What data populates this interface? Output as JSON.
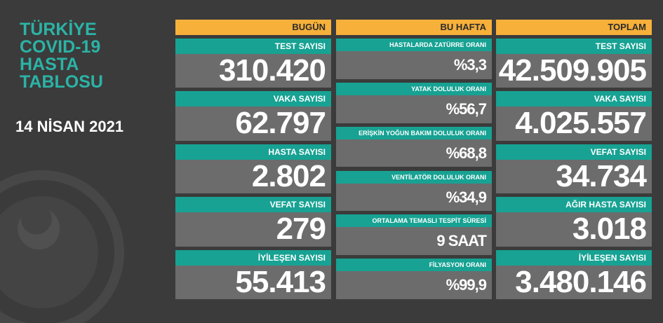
{
  "title_lines": [
    "TÜRKİYE",
    "COVID-19",
    "HASTA",
    "TABLOSU"
  ],
  "date": "14 NİSAN 2021",
  "columns": [
    {
      "header": "BUGÜN",
      "items": [
        {
          "label": "TEST SAYISI",
          "value": "310.420"
        },
        {
          "label": "VAKA SAYISI",
          "value": "62.797"
        },
        {
          "label": "HASTA SAYISI",
          "value": "2.802"
        },
        {
          "label": "VEFAT SAYISI",
          "value": "279"
        },
        {
          "label": "İYİLEŞEN SAYISI",
          "value": "55.413"
        }
      ]
    },
    {
      "header": "BU HAFTA",
      "items": [
        {
          "label": "HASTALARDA ZATÜRRE ORANI",
          "value": "%3,3"
        },
        {
          "label": "YATAK DOLULUK ORANI",
          "value": "%56,7"
        },
        {
          "label": "ERİŞKİN YOĞUN BAKIM DOLULUK ORANI",
          "value": "%68,8"
        },
        {
          "label": "VENTİLATÖR DOLULUK ORANI",
          "value": "%34,9"
        },
        {
          "label": "ORTALAMA TEMASLI TESPİT SÜRESİ",
          "value": "9 SAAT"
        },
        {
          "label": "FİLYASYON ORANI",
          "value": "%99,9"
        }
      ]
    },
    {
      "header": "TOPLAM",
      "items": [
        {
          "label": "TEST SAYISI",
          "value": "42.509.905"
        },
        {
          "label": "VAKA SAYISI",
          "value": "4.025.557"
        },
        {
          "label": "VEFAT SAYISI",
          "value": "34.734"
        },
        {
          "label": "AĞIR HASTA SAYISI",
          "value": "3.018"
        },
        {
          "label": "İYİLEŞEN SAYISI",
          "value": "3.480.146"
        }
      ]
    }
  ]
}
